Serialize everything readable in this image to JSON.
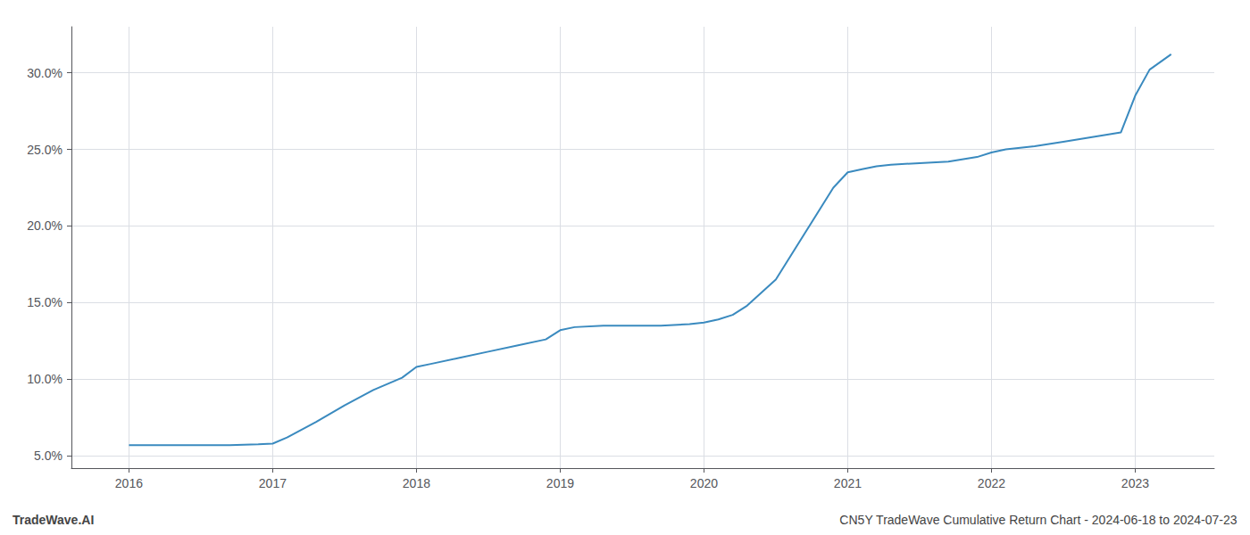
{
  "chart_data": {
    "type": "line",
    "x": [
      2016.0,
      2016.1,
      2016.3,
      2016.5,
      2016.7,
      2016.9,
      2017.0,
      2017.1,
      2017.3,
      2017.5,
      2017.7,
      2017.9,
      2018.0,
      2018.1,
      2018.3,
      2018.5,
      2018.7,
      2018.9,
      2019.0,
      2019.1,
      2019.3,
      2019.5,
      2019.7,
      2019.9,
      2020.0,
      2020.1,
      2020.2,
      2020.3,
      2020.5,
      2020.7,
      2020.9,
      2021.0,
      2021.1,
      2021.2,
      2021.3,
      2021.5,
      2021.7,
      2021.9,
      2022.0,
      2022.1,
      2022.3,
      2022.5,
      2022.7,
      2022.9,
      2023.0,
      2023.1,
      2023.25
    ],
    "values": [
      5.7,
      5.7,
      5.7,
      5.7,
      5.7,
      5.75,
      5.8,
      6.2,
      7.2,
      8.3,
      9.3,
      10.1,
      10.8,
      11.0,
      11.4,
      11.8,
      12.2,
      12.6,
      13.2,
      13.4,
      13.5,
      13.5,
      13.5,
      13.6,
      13.7,
      13.9,
      14.2,
      14.8,
      16.5,
      19.5,
      22.5,
      23.5,
      23.7,
      23.9,
      24.0,
      24.1,
      24.2,
      24.5,
      24.8,
      25.0,
      25.2,
      25.5,
      25.8,
      26.1,
      28.5,
      30.2,
      31.2
    ],
    "color": "#3a8abf",
    "xlim": [
      2015.6,
      2023.55
    ],
    "ylim": [
      4.2,
      33.0
    ],
    "xticks": [
      2016,
      2017,
      2018,
      2019,
      2020,
      2021,
      2022,
      2023
    ],
    "yticks": [
      {
        "value": 5.0,
        "label": "5.0%"
      },
      {
        "value": 10.0,
        "label": "10.0%"
      },
      {
        "value": 15.0,
        "label": "15.0%"
      },
      {
        "value": 20.0,
        "label": "20.0%"
      },
      {
        "value": 25.0,
        "label": "25.0%"
      },
      {
        "value": 30.0,
        "label": "30.0%"
      }
    ],
    "grid": true,
    "annotations": [
      "TradeWave.AI",
      "CN5Y TradeWave Cumulative Return Chart - 2024-06-18 to 2024-07-23"
    ]
  }
}
